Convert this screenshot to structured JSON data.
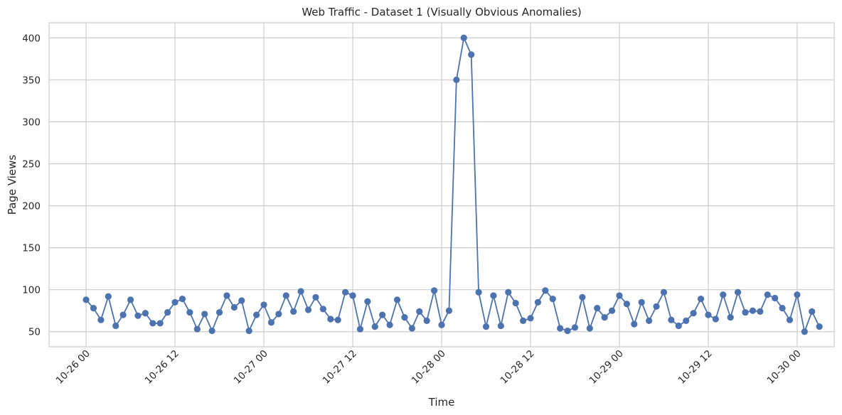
{
  "chart_data": {
    "type": "line",
    "title": "Web Traffic - Dataset 1 (Visually Obvious Anomalies)",
    "xlabel": "Time",
    "ylabel": "Page Views",
    "x_start": "2023-10-26 00:00",
    "x_step_hours": 1,
    "xlim": [
      "2023-10-25 19:00",
      "2023-10-30 05:00"
    ],
    "ylim": [
      32,
      418
    ],
    "x_ticks": [
      "10-26 00",
      "10-26 12",
      "10-27 00",
      "10-27 12",
      "10-28 00",
      "10-28 12",
      "10-29 00",
      "10-29 12",
      "10-30 00"
    ],
    "y_ticks": [
      50,
      100,
      150,
      200,
      250,
      300,
      350,
      400
    ],
    "grid": true,
    "color": "#4c72b0",
    "series": [
      {
        "name": "",
        "values": [
          88,
          78,
          64,
          92,
          57,
          70,
          88,
          69,
          72,
          60,
          60,
          73,
          85,
          89,
          73,
          53,
          71,
          51,
          73,
          93,
          79,
          87,
          51,
          70,
          82,
          61,
          71,
          93,
          74,
          98,
          76,
          91,
          77,
          65,
          64,
          97,
          93,
          53,
          86,
          56,
          70,
          58,
          88,
          67,
          54,
          74,
          63,
          99,
          58,
          75,
          350,
          400,
          380,
          97,
          56,
          93,
          57,
          97,
          84,
          63,
          66,
          85,
          99,
          89,
          54,
          51,
          55,
          91,
          54,
          78,
          67,
          75,
          93,
          83,
          59,
          85,
          63,
          80,
          97,
          64,
          57,
          63,
          72,
          89,
          70,
          65,
          94,
          67,
          97,
          73,
          75,
          74,
          94,
          90,
          78,
          64,
          94,
          50,
          74,
          56
        ]
      }
    ]
  }
}
